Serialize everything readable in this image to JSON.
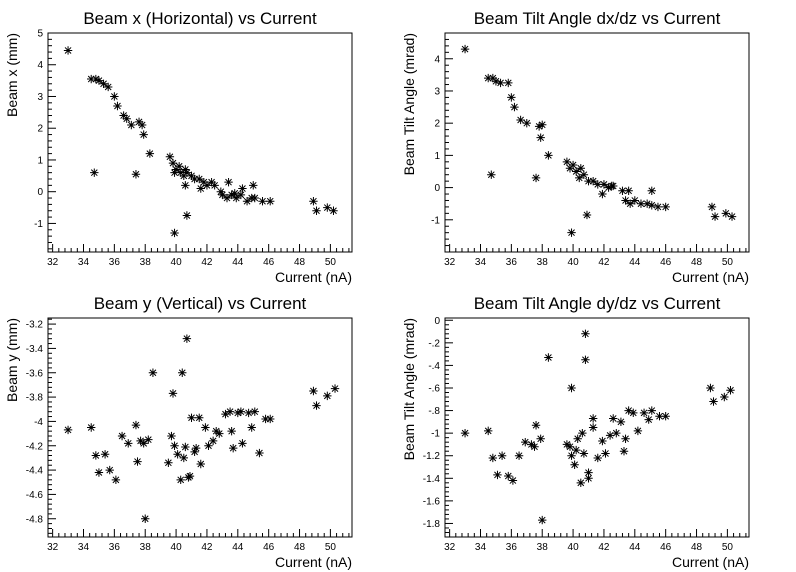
{
  "chart_data": [
    {
      "type": "scatter",
      "title": "Beam x (Horizontal) vs Current",
      "xlabel": "Current (nA)",
      "ylabel": "Beam x (mm)",
      "xlim": [
        31.7,
        51.4
      ],
      "ylim": [
        -1.9,
        5
      ],
      "xticks": [
        32,
        34,
        36,
        38,
        40,
        42,
        44,
        46,
        48,
        50
      ],
      "yticks": [
        -1,
        0,
        1,
        2,
        3,
        4,
        5
      ],
      "marker": "star",
      "x": [
        33.0,
        34.5,
        34.8,
        35.0,
        35.3,
        35.6,
        36.0,
        36.2,
        36.6,
        36.8,
        37.1,
        37.6,
        37.8,
        37.9,
        38.3,
        39.6,
        39.8,
        39.9,
        40.0,
        40.2,
        40.3,
        40.5,
        40.6,
        40.7,
        41.0,
        41.2,
        41.5,
        41.8,
        42.0,
        42.3,
        42.5,
        43.0,
        43.3,
        43.6,
        43.9,
        44.2,
        44.6,
        44.9,
        45.1,
        45.6,
        46.1,
        48.9,
        49.1,
        49.8,
        50.2,
        34.7,
        37.4,
        39.9,
        40.7,
        40.6,
        43.4,
        43.8,
        44.3,
        45.0,
        41.6,
        42.9
      ],
      "y": [
        4.45,
        3.55,
        3.55,
        3.5,
        3.4,
        3.3,
        3.0,
        2.7,
        2.4,
        2.3,
        2.1,
        2.2,
        2.1,
        1.8,
        1.2,
        1.1,
        0.9,
        0.6,
        0.7,
        0.8,
        0.6,
        0.5,
        0.7,
        0.6,
        0.5,
        0.4,
        0.4,
        0.3,
        0.2,
        0.3,
        0.2,
        -0.1,
        -0.2,
        -0.1,
        -0.2,
        -0.1,
        -0.3,
        -0.2,
        -0.2,
        -0.3,
        -0.3,
        -0.3,
        -0.6,
        -0.5,
        -0.6,
        0.6,
        0.55,
        -1.3,
        -0.75,
        0.2,
        0.3,
        -0.05,
        0.1,
        0.2,
        0.1,
        0.0
      ]
    },
    {
      "type": "scatter",
      "title": "Beam Tilt Angle dx/dz vs Current",
      "xlabel": "Current (nA)",
      "ylabel": "Beam Tilt Angle (mrad)",
      "xlim": [
        31.7,
        51.4
      ],
      "ylim": [
        -2.0,
        4.8
      ],
      "xticks": [
        32,
        34,
        36,
        38,
        40,
        42,
        44,
        46,
        48,
        50
      ],
      "yticks": [
        -1,
        0,
        1,
        2,
        3,
        4
      ],
      "marker": "star",
      "x": [
        33.0,
        34.5,
        34.8,
        35.0,
        35.3,
        35.8,
        36.0,
        36.2,
        36.6,
        37.0,
        37.8,
        37.9,
        38.0,
        38.4,
        39.6,
        39.8,
        40.0,
        40.2,
        40.4,
        40.5,
        40.7,
        41.0,
        41.3,
        41.6,
        42.0,
        42.3,
        42.6,
        43.2,
        43.4,
        43.7,
        44.0,
        44.4,
        44.8,
        45.1,
        45.5,
        46.0,
        49.0,
        49.2,
        49.9,
        50.3,
        34.7,
        37.6,
        39.9,
        40.9,
        41.9,
        42.5,
        43.6,
        45.1
      ],
      "y": [
        4.3,
        3.4,
        3.4,
        3.3,
        3.25,
        3.25,
        2.8,
        2.5,
        2.1,
        2.0,
        1.9,
        1.55,
        1.95,
        1.0,
        0.8,
        0.6,
        0.7,
        0.5,
        0.3,
        0.6,
        0.4,
        0.2,
        0.2,
        0.1,
        0.1,
        0.0,
        0.05,
        -0.1,
        -0.4,
        -0.5,
        -0.4,
        -0.5,
        -0.5,
        -0.55,
        -0.6,
        -0.6,
        -0.6,
        -0.9,
        -0.8,
        -0.9,
        0.4,
        0.3,
        -1.4,
        -0.85,
        -0.2,
        0.05,
        -0.1,
        -0.1
      ]
    },
    {
      "type": "scatter",
      "title": "Beam y (Vertical) vs Current",
      "xlabel": "Current (nA)",
      "ylabel": "Beam y (mm)",
      "xlim": [
        31.7,
        51.4
      ],
      "ylim": [
        -4.95,
        -3.15
      ],
      "xticks": [
        32,
        34,
        36,
        38,
        40,
        42,
        44,
        46,
        48,
        50
      ],
      "yticks": [
        -4.8,
        -4.6,
        -4.4,
        -4.2,
        -4.0,
        -3.8,
        -3.6,
        -3.4,
        -3.2
      ],
      "marker": "star",
      "x": [
        33.0,
        34.5,
        34.8,
        35.0,
        35.4,
        35.7,
        36.1,
        36.5,
        36.9,
        37.4,
        37.7,
        37.9,
        38.0,
        38.5,
        39.5,
        39.7,
        39.9,
        40.1,
        40.3,
        40.6,
        40.8,
        40.9,
        41.0,
        41.3,
        41.6,
        41.9,
        42.1,
        42.4,
        42.8,
        43.2,
        43.5,
        43.7,
        44.0,
        44.3,
        44.7,
        44.9,
        45.1,
        45.4,
        45.8,
        46.1,
        48.9,
        49.1,
        49.8,
        50.3,
        39.8,
        40.4,
        40.7,
        37.5,
        41.5,
        42.6,
        43.6,
        44.2,
        41.2,
        40.5,
        38.2
      ],
      "y": [
        -4.07,
        -4.05,
        -4.28,
        -4.42,
        -4.27,
        -4.4,
        -4.48,
        -4.12,
        -4.18,
        -4.03,
        -4.16,
        -4.18,
        -4.8,
        -3.6,
        -4.34,
        -4.12,
        -4.2,
        -4.27,
        -4.48,
        -4.21,
        -4.46,
        -4.45,
        -3.97,
        -4.22,
        -4.35,
        -4.05,
        -4.2,
        -4.16,
        -4.1,
        -3.94,
        -3.92,
        -4.22,
        -3.93,
        -4.18,
        -3.93,
        -4.05,
        -3.92,
        -4.26,
        -3.98,
        -3.98,
        -3.75,
        -3.87,
        -3.79,
        -3.73,
        -3.77,
        -3.6,
        -3.32,
        -4.33,
        -3.97,
        -4.08,
        -4.08,
        -3.92,
        -4.25,
        -4.3,
        -4.15
      ]
    },
    {
      "type": "scatter",
      "title": "Beam Tilt Angle dy/dz vs Current",
      "xlabel": "Current (nA)",
      "ylabel": "Beam Tilt Angle (mrad)",
      "xlim": [
        31.7,
        51.4
      ],
      "ylim": [
        -1.92,
        0.02
      ],
      "xticks": [
        32,
        34,
        36,
        38,
        40,
        42,
        44,
        46,
        48,
        50
      ],
      "yticks": [
        -1.8,
        -1.6,
        -1.4,
        -1.2,
        -1.0,
        -0.8,
        -0.6,
        -0.4,
        -0.2,
        0
      ],
      "marker": "star",
      "x": [
        33.0,
        34.5,
        34.8,
        35.1,
        35.4,
        35.8,
        36.1,
        36.5,
        36.9,
        37.3,
        37.6,
        37.9,
        38.0,
        38.4,
        39.6,
        39.8,
        39.9,
        40.1,
        40.3,
        40.5,
        40.7,
        40.8,
        41.0,
        41.3,
        41.6,
        41.9,
        42.1,
        42.4,
        42.8,
        43.1,
        43.3,
        43.6,
        43.9,
        44.2,
        44.6,
        44.9,
        45.1,
        45.6,
        46.0,
        48.9,
        49.1,
        49.8,
        50.2,
        39.9,
        40.6,
        40.8,
        37.5,
        42.6,
        43.4,
        41.3,
        40.2,
        41.0
      ],
      "y": [
        -1.0,
        -0.98,
        -1.22,
        -1.37,
        -1.2,
        -1.38,
        -1.42,
        -1.2,
        -1.08,
        -1.1,
        -0.93,
        -1.05,
        -1.77,
        -0.33,
        -1.1,
        -1.12,
        -1.2,
        -1.28,
        -1.05,
        -1.44,
        -1.18,
        -0.35,
        -1.4,
        -0.87,
        -1.22,
        -1.07,
        -1.18,
        -1.02,
        -1.0,
        -0.9,
        -1.16,
        -0.8,
        -0.82,
        -0.98,
        -0.82,
        -0.88,
        -0.8,
        -0.85,
        -0.85,
        -0.6,
        -0.72,
        -0.68,
        -0.62,
        -0.6,
        -1.0,
        -0.12,
        -1.12,
        -0.87,
        -1.05,
        -0.95,
        -1.15,
        -1.35
      ]
    }
  ]
}
